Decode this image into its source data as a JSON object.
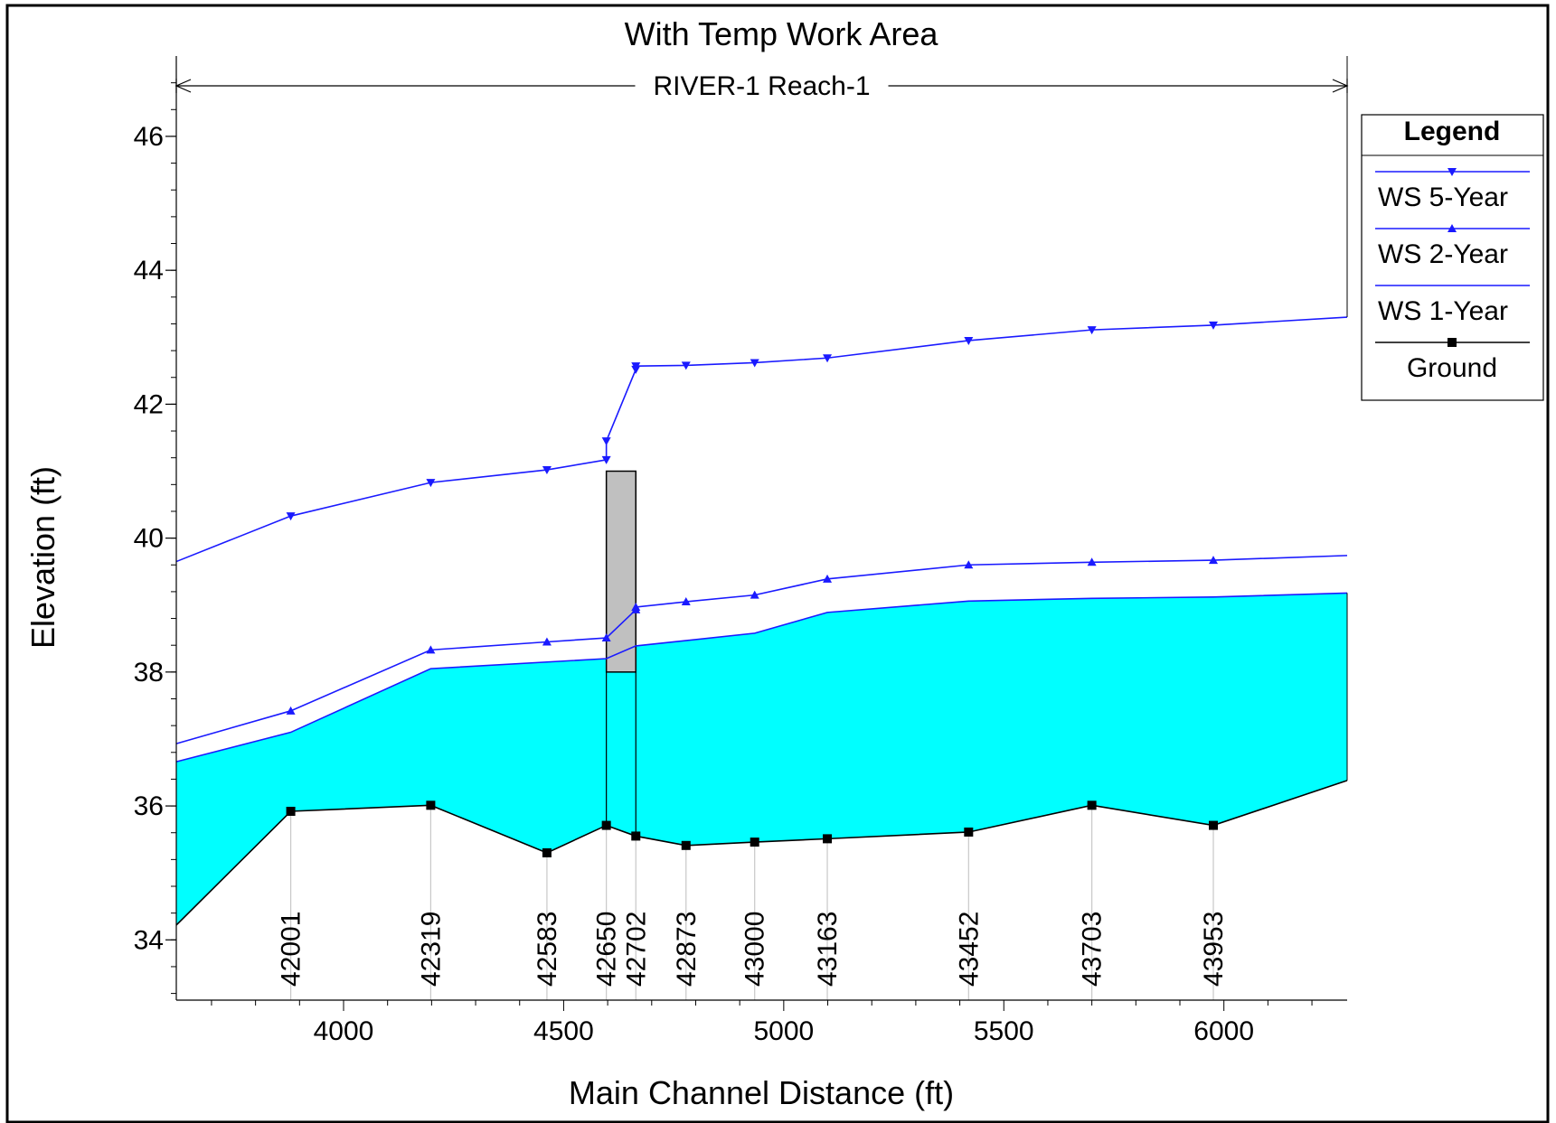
{
  "chart_data": {
    "type": "line",
    "title": "With Temp Work Area",
    "reach_label": "RIVER-1 Reach-1",
    "xlabel": "Main Channel Distance (ft)",
    "ylabel": "Elevation (ft)",
    "xlim": [
      3620,
      6280
    ],
    "ylim": [
      33.1,
      47.2
    ],
    "x_ticks": [
      4000,
      4500,
      5000,
      5500,
      6000
    ],
    "y_ticks": [
      34,
      36,
      38,
      40,
      42,
      44,
      46
    ],
    "grid": false,
    "legend": {
      "title": "Legend",
      "placement": "right",
      "entries": [
        "WS  5-Year",
        "WS  2-Year",
        "WS  1-Year",
        "Ground"
      ]
    },
    "colors": {
      "ws_line": "#1a1aff",
      "water_fill": "#00ffff",
      "ground": "#000000",
      "obstruction": "#c0c0c0",
      "station_line": "#c8c8c8"
    },
    "stations": [
      {
        "label": "42001",
        "x": 3880
      },
      {
        "label": "42319",
        "x": 4198
      },
      {
        "label": "42583",
        "x": 4462
      },
      {
        "label": "42650",
        "x": 4597
      },
      {
        "label": "42702",
        "x": 4664
      },
      {
        "label": "42873",
        "x": 4778
      },
      {
        "label": "43000",
        "x": 4934
      },
      {
        "label": "43163",
        "x": 5099
      },
      {
        "label": "43452",
        "x": 5420
      },
      {
        "label": "43703",
        "x": 5700
      },
      {
        "label": "43953",
        "x": 5976
      }
    ],
    "series": [
      {
        "name": "WS  5-Year",
        "marker": "triangle-down",
        "points": [
          [
            3620,
            39.65
          ],
          [
            3880,
            40.33
          ],
          [
            4198,
            40.83
          ],
          [
            4462,
            41.02
          ],
          [
            4597,
            41.17
          ],
          [
            4597,
            41.45
          ],
          [
            4664,
            42.52
          ],
          [
            4664,
            42.57
          ],
          [
            4778,
            42.58
          ],
          [
            4934,
            42.62
          ],
          [
            5099,
            42.69
          ],
          [
            5420,
            42.95
          ],
          [
            5700,
            43.11
          ],
          [
            5976,
            43.18
          ],
          [
            6280,
            43.3
          ]
        ]
      },
      {
        "name": "WS  2-Year",
        "marker": "triangle-up",
        "points": [
          [
            3620,
            36.93
          ],
          [
            3880,
            37.42
          ],
          [
            4198,
            38.33
          ],
          [
            4462,
            38.45
          ],
          [
            4597,
            38.51
          ],
          [
            4664,
            38.93
          ],
          [
            4664,
            38.97
          ],
          [
            4778,
            39.05
          ],
          [
            4934,
            39.15
          ],
          [
            5099,
            39.39
          ],
          [
            5420,
            39.6
          ],
          [
            5700,
            39.64
          ],
          [
            5976,
            39.67
          ],
          [
            6280,
            39.74
          ]
        ]
      },
      {
        "name": "WS  1-Year",
        "marker": "none",
        "points": [
          [
            3620,
            36.66
          ],
          [
            3880,
            37.1
          ],
          [
            4198,
            38.05
          ],
          [
            4597,
            38.2
          ],
          [
            4664,
            38.39
          ],
          [
            4934,
            38.58
          ],
          [
            5099,
            38.89
          ],
          [
            5420,
            39.06
          ],
          [
            5700,
            39.1
          ],
          [
            5976,
            39.12
          ],
          [
            6280,
            39.18
          ]
        ]
      },
      {
        "name": "Ground",
        "marker": "square",
        "points": [
          [
            3620,
            34.22
          ],
          [
            3880,
            35.92
          ],
          [
            4198,
            36.01
          ],
          [
            4462,
            35.3
          ],
          [
            4597,
            35.71
          ],
          [
            4664,
            35.55
          ],
          [
            4778,
            35.41
          ],
          [
            4934,
            35.46
          ],
          [
            5099,
            35.51
          ],
          [
            5420,
            35.61
          ],
          [
            5700,
            36.01
          ],
          [
            5976,
            35.71
          ],
          [
            6280,
            36.38
          ]
        ]
      }
    ],
    "obstruction": {
      "x": [
        4597,
        4664
      ],
      "y": [
        38.0,
        41.0
      ]
    }
  }
}
